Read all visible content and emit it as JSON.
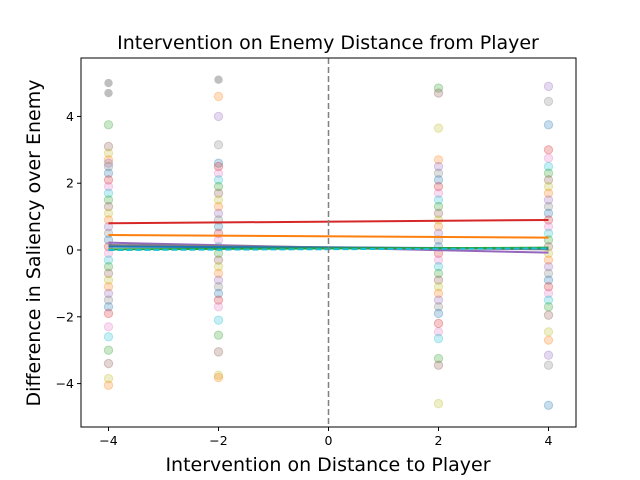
{
  "chart_data": {
    "type": "scatter",
    "title": "Intervention on Enemy Distance from Player",
    "xlabel": "Intervention on Distance to Player",
    "ylabel": "Difference in Saliency over Enemy",
    "xlim": [
      -4.5,
      4.5
    ],
    "ylim": [
      -5.3,
      5.75
    ],
    "x_ticks": [
      -4,
      -2,
      0,
      2,
      4
    ],
    "y_ticks": [
      -4,
      -2,
      0,
      2,
      4
    ],
    "x_tick_labels": [
      "−4",
      "−2",
      "0",
      "2",
      "4"
    ],
    "y_tick_labels": [
      "−4",
      "−2",
      "0",
      "2",
      "4"
    ],
    "grid": false,
    "vertical_reference_line": {
      "x": 0,
      "style": "dashed",
      "color": "#808080"
    },
    "scatter_x_positions": [
      -4,
      -2,
      2,
      4
    ],
    "palette": [
      "#1f77b4",
      "#ff7f0e",
      "#2ca02c",
      "#d62728",
      "#9467bd",
      "#8c564b",
      "#e377c2",
      "#7f7f7f",
      "#bcbd22",
      "#17becf"
    ],
    "points": {
      "-4": [
        5.0,
        4.7,
        3.75,
        3.1,
        2.9,
        2.7,
        2.6,
        2.5,
        2.3,
        2.1,
        1.9,
        1.7,
        1.5,
        1.3,
        1.1,
        0.9,
        0.7,
        0.5,
        0.3,
        0.1,
        -0.1,
        -0.3,
        -0.5,
        -0.7,
        -0.9,
        -1.1,
        -1.3,
        -1.5,
        -1.7,
        -1.9,
        -2.3,
        -2.6,
        -3.0,
        -3.4,
        -3.85,
        -4.05
      ],
      "-2": [
        5.1,
        4.6,
        4.0,
        3.15,
        2.6,
        2.5,
        2.3,
        2.1,
        1.9,
        1.7,
        1.5,
        1.3,
        1.1,
        0.9,
        0.7,
        0.5,
        0.3,
        0.1,
        -0.1,
        -0.3,
        -0.5,
        -0.7,
        -0.9,
        -1.1,
        -1.3,
        -1.5,
        -1.7,
        -2.1,
        -2.55,
        -3.05,
        -3.75,
        -3.82
      ],
      "2": [
        4.85,
        4.7,
        3.65,
        2.7,
        2.5,
        2.3,
        2.1,
        1.9,
        1.7,
        1.5,
        1.3,
        1.1,
        0.9,
        0.7,
        0.5,
        0.3,
        0.1,
        -0.1,
        -0.3,
        -0.5,
        -0.7,
        -0.9,
        -1.1,
        -1.3,
        -1.5,
        -1.7,
        -1.9,
        -2.2,
        -2.45,
        -2.65,
        -3.25,
        -3.45,
        -4.6
      ],
      "4": [
        4.9,
        4.45,
        3.75,
        3.0,
        2.75,
        2.5,
        2.3,
        2.1,
        1.9,
        1.7,
        1.5,
        1.3,
        1.1,
        0.9,
        0.7,
        0.5,
        0.3,
        0.1,
        -0.1,
        -0.3,
        -0.5,
        -0.7,
        -0.9,
        -1.1,
        -1.3,
        -1.5,
        -1.7,
        -1.95,
        -2.45,
        -2.7,
        -3.15,
        -3.45,
        -4.65
      ]
    },
    "series": [
      {
        "x": [
          -4,
          4
        ],
        "values": [
          0.8,
          0.9
        ],
        "color": "#d62728",
        "style": "solid"
      },
      {
        "x": [
          -4,
          4
        ],
        "values": [
          0.45,
          0.37
        ],
        "color": "#ff7f0e",
        "style": "solid"
      },
      {
        "x": [
          -4,
          4
        ],
        "values": [
          0.22,
          -0.08
        ],
        "color": "#9467bd",
        "style": "solid"
      },
      {
        "x": [
          -4,
          4
        ],
        "values": [
          0.15,
          0.02
        ],
        "color": "#7f7f7f",
        "style": "solid"
      },
      {
        "x": [
          -4,
          4
        ],
        "values": [
          0.1,
          0.05
        ],
        "color": "#1f77b4",
        "style": "solid"
      },
      {
        "x": [
          -4,
          4
        ],
        "values": [
          0.02,
          0.07
        ],
        "color": "#2ca02c",
        "style": "solid"
      },
      {
        "x": [
          -4,
          4
        ],
        "values": [
          0.0,
          0.05
        ],
        "color": "#17becf",
        "style": "dashed"
      }
    ]
  }
}
